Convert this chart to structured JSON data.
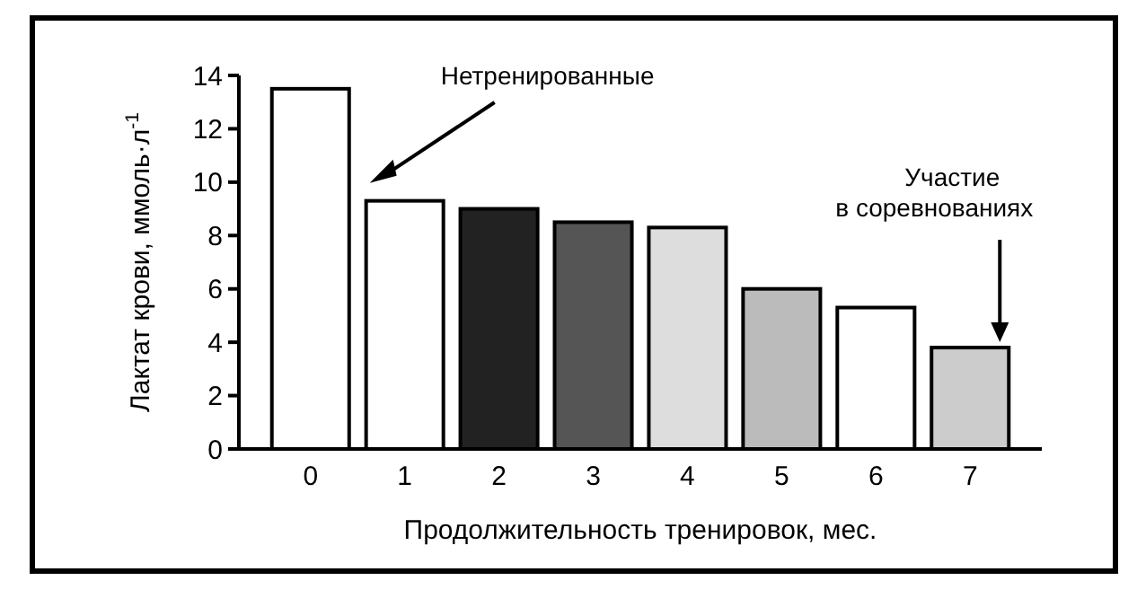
{
  "chart_data": {
    "type": "bar",
    "xlabel": "Продолжительность тренировок, мес.",
    "ylabel": "Лактат крови, ммоль·л$^{-1}$",
    "categories": [
      "0",
      "1",
      "2",
      "3",
      "4",
      "5",
      "6",
      "7"
    ],
    "values": [
      13.5,
      9.3,
      9.0,
      8.5,
      8.3,
      6.0,
      5.3,
      3.8
    ],
    "colors": [
      "#ffffff",
      "#ffffff",
      "#222222",
      "#555555",
      "#dddddd",
      "#bbbbbb",
      "#ffffff",
      "#cccccc"
    ],
    "ylim": [
      0,
      14
    ],
    "yticks": [
      0,
      2,
      4,
      6,
      8,
      10,
      12,
      14
    ],
    "grid": false,
    "annotations": [
      "Нетренированные",
      "Участие\nв соревнованиях"
    ]
  }
}
